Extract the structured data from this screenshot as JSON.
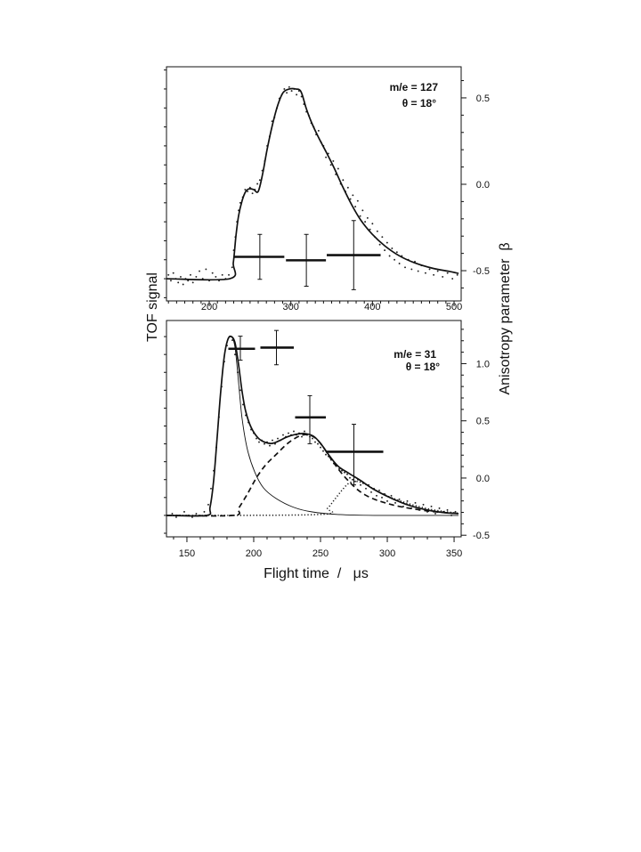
{
  "figure": {
    "y_left_label": "TOF signal",
    "y_right_label": "Anisotropy parameter  β",
    "x_label": "Flight time  /   μs"
  },
  "chart_data": [
    {
      "type": "line",
      "panel": "top",
      "annotation_mass": "m/e = 127",
      "annotation_angle": "θ = 18°",
      "xlim": [
        147.6,
        508.7
      ],
      "xticks": [
        200,
        300,
        400,
        500
      ],
      "xtick_labels": [
        "200",
        "300",
        "400",
        "500"
      ],
      "x_minor_step": 10,
      "ylim_signal": [
        -0.117,
        1.117
      ],
      "signal_minor_step": 0.1,
      "ylim_beta": [
        -0.675,
        0.68
      ],
      "beta_ticks": [
        -0.5,
        0.0,
        0.5
      ],
      "beta_tick_labels": [
        "-0.5",
        "0.0",
        "0.5"
      ],
      "beta_minor_step": 0.1,
      "series": [
        {
          "style": "solid-thick",
          "x": [
            147.6,
            225.1,
            229.5,
            232.7,
            236,
            240.4,
            244.7,
            249.1,
            254.5,
            260,
            265.5,
            270.9,
            277.5,
            284,
            290.5,
            298.2,
            305.8,
            312.4,
            318.9,
            325.5,
            334.2,
            342.9,
            352.7,
            363.6,
            374.5,
            385.5,
            399.6,
            414.9,
            432.4,
            450.9,
            472.9,
            494.7,
            505.6
          ],
          "y": [
            0,
            0,
            0.085,
            0.225,
            0.333,
            0.413,
            0.46,
            0.474,
            0.47,
            0.46,
            0.554,
            0.681,
            0.812,
            0.915,
            0.981,
            1.0,
            1.0,
            0.986,
            0.897,
            0.822,
            0.742,
            0.671,
            0.587,
            0.484,
            0.39,
            0.31,
            0.235,
            0.174,
            0.122,
            0.085,
            0.056,
            0.038,
            0.028
          ]
        }
      ],
      "points": [
        [
          150,
          0.02
        ],
        [
          153,
          -0.01
        ],
        [
          156,
          0.03
        ],
        [
          159,
          0.0
        ],
        [
          162,
          -0.02
        ],
        [
          165,
          0.01
        ],
        [
          168,
          -0.03
        ],
        [
          171,
          0.0
        ],
        [
          174,
          -0.01
        ],
        [
          177,
          0.02
        ],
        [
          180,
          -0.02
        ],
        [
          184,
          0.01
        ],
        [
          188,
          0.04
        ],
        [
          192,
          0.0
        ],
        [
          196,
          0.05
        ],
        [
          200,
          -0.01
        ],
        [
          204,
          0.03
        ],
        [
          208,
          0.01
        ],
        [
          212,
          -0.01
        ],
        [
          216,
          0.02
        ],
        [
          220,
          0.0
        ],
        [
          224,
          0.02
        ],
        [
          228,
          0.06
        ],
        [
          230,
          0.15
        ],
        [
          232,
          0.22
        ],
        [
          234,
          0.3
        ],
        [
          236,
          0.36
        ],
        [
          238,
          0.4
        ],
        [
          241,
          0.43
        ],
        [
          244,
          0.47
        ],
        [
          247,
          0.46
        ],
        [
          250,
          0.48
        ],
        [
          253,
          0.45
        ],
        [
          256,
          0.47
        ],
        [
          259,
          0.5
        ],
        [
          262,
          0.52
        ],
        [
          265,
          0.57
        ],
        [
          268,
          0.62
        ],
        [
          271,
          0.7
        ],
        [
          274,
          0.75
        ],
        [
          277,
          0.83
        ],
        [
          280,
          0.85
        ],
        [
          283,
          0.9
        ],
        [
          286,
          0.95
        ],
        [
          289,
          0.97
        ],
        [
          292,
          1.0
        ],
        [
          295,
          0.98
        ],
        [
          298,
          1.01
        ],
        [
          301,
          0.99
        ],
        [
          304,
          1.0
        ],
        [
          307,
          0.97
        ],
        [
          310,
          0.99
        ],
        [
          313,
          0.96
        ],
        [
          316,
          0.92
        ],
        [
          319,
          0.88
        ],
        [
          322,
          0.86
        ],
        [
          325,
          0.82
        ],
        [
          328,
          0.8
        ],
        [
          331,
          0.76
        ],
        [
          334,
          0.78
        ],
        [
          337,
          0.72
        ],
        [
          340,
          0.7
        ],
        [
          343,
          0.64
        ],
        [
          346,
          0.66
        ],
        [
          349,
          0.6
        ],
        [
          352,
          0.62
        ],
        [
          355,
          0.55
        ],
        [
          358,
          0.58
        ],
        [
          361,
          0.5
        ],
        [
          364,
          0.52
        ],
        [
          367,
          0.46
        ],
        [
          370,
          0.48
        ],
        [
          373,
          0.42
        ],
        [
          376,
          0.44
        ],
        [
          379,
          0.38
        ],
        [
          382,
          0.41
        ],
        [
          385,
          0.33
        ],
        [
          388,
          0.36
        ],
        [
          391,
          0.3
        ],
        [
          394,
          0.32
        ],
        [
          397,
          0.26
        ],
        [
          400,
          0.29
        ],
        [
          403,
          0.22
        ],
        [
          406,
          0.25
        ],
        [
          409,
          0.18
        ],
        [
          412,
          0.22
        ],
        [
          415,
          0.15
        ],
        [
          418,
          0.19
        ],
        [
          421,
          0.12
        ],
        [
          424,
          0.16
        ],
        [
          427,
          0.1
        ],
        [
          430,
          0.14
        ],
        [
          433,
          0.08
        ],
        [
          436,
          0.12
        ],
        [
          440,
          0.06
        ],
        [
          444,
          0.1
        ],
        [
          448,
          0.05
        ],
        [
          452,
          0.09
        ],
        [
          456,
          0.04
        ],
        [
          460,
          0.07
        ],
        [
          465,
          0.03
        ],
        [
          470,
          0.05
        ],
        [
          475,
          0.02
        ],
        [
          480,
          0.04
        ],
        [
          486,
          0.01
        ],
        [
          492,
          0.03
        ],
        [
          498,
          0.0
        ],
        [
          504,
          0.02
        ]
      ],
      "beta": [
        {
          "x": 262,
          "x_from": 230,
          "x_to": 292,
          "value": -0.42,
          "err_low": -0.55,
          "err_high": -0.29
        },
        {
          "x": 319,
          "x_from": 294,
          "x_to": 343,
          "value": -0.44,
          "err_low": -0.59,
          "err_high": -0.29
        },
        {
          "x": 377,
          "x_from": 344,
          "x_to": 410,
          "value": -0.41,
          "err_low": -0.61,
          "err_high": -0.21
        }
      ]
    },
    {
      "type": "line",
      "panel": "bottom",
      "annotation_mass": "m/e = 31",
      "annotation_angle": "θ = 18°",
      "xlim": [
        134.7,
        355.3
      ],
      "xticks": [
        150,
        200,
        250,
        300,
        350
      ],
      "xtick_labels": [
        "150",
        "200",
        "250",
        "300",
        "350"
      ],
      "x_minor_step": 10,
      "ylim_signal": [
        -0.12,
        1.09
      ],
      "signal_minor_step": 0.1,
      "ylim_beta": [
        -0.514,
        1.377
      ],
      "beta_ticks": [
        -0.5,
        0.0,
        0.5,
        1.0
      ],
      "beta_tick_labels": [
        "-0.5",
        "0.0",
        "0.5",
        "1.0"
      ],
      "beta_minor_step": 0.1,
      "series": [
        {
          "style": "dotted",
          "x": [
            134.7,
            248.7,
            255.3,
            260.7,
            266,
            271.3,
            276.7,
            283.3,
            296.7,
            310,
            323.3,
            336.7,
            353.3
          ],
          "y": [
            0,
            0.005,
            0.04,
            0.09,
            0.14,
            0.18,
            0.19,
            0.175,
            0.12,
            0.08,
            0.05,
            0.028,
            0.012
          ]
        },
        {
          "style": "dashed",
          "x": [
            134.7,
            184.7,
            188.7,
            195.3,
            202,
            208.7,
            216.7,
            226.7,
            236.7,
            244.7,
            251.3,
            259.3,
            270,
            283.3,
            303.3,
            330,
            353.3
          ],
          "y": [
            0,
            0,
            0.04,
            0.12,
            0.21,
            0.28,
            0.34,
            0.41,
            0.45,
            0.44,
            0.39,
            0.3,
            0.2,
            0.115,
            0.06,
            0.025,
            0.01
          ]
        },
        {
          "style": "solid-thin",
          "x": [
            134.7,
            164.7,
            167.3,
            170,
            172.7,
            175.3,
            178,
            180.7,
            183.3,
            186,
            188.7,
            191.3,
            195.3,
            200.7,
            207.3,
            216.7,
            230,
            243.3,
            263.3,
            290,
            353.3
          ],
          "y": [
            0,
            0,
            0.045,
            0.194,
            0.443,
            0.692,
            0.891,
            0.985,
            1.0,
            0.94,
            0.741,
            0.542,
            0.368,
            0.244,
            0.154,
            0.095,
            0.045,
            0.02,
            0.005,
            0,
            0
          ]
        },
        {
          "style": "solid-thick",
          "x": [
            134.7,
            164.7,
            167.3,
            170,
            172.7,
            175.3,
            178,
            180.7,
            183.3,
            186,
            188.7,
            191.3,
            194,
            198,
            203.3,
            208.7,
            214,
            219.3,
            224.7,
            231.3,
            238,
            244.7,
            250,
            256.7,
            263.3,
            271.3,
            280,
            290,
            303.3,
            316.7,
            330,
            343.3,
            353.3
          ],
          "y": [
            0,
            0,
            0.045,
            0.194,
            0.443,
            0.692,
            0.891,
            0.985,
            1.0,
            0.965,
            0.841,
            0.692,
            0.582,
            0.493,
            0.433,
            0.408,
            0.403,
            0.418,
            0.438,
            0.453,
            0.458,
            0.443,
            0.403,
            0.333,
            0.274,
            0.235,
            0.195,
            0.145,
            0.095,
            0.055,
            0.03,
            0.015,
            0.01
          ]
        }
      ],
      "points": [
        [
          136,
          0.0
        ],
        [
          139,
          0.01
        ],
        [
          142,
          -0.01
        ],
        [
          145,
          0.0
        ],
        [
          148,
          0.02
        ],
        [
          151,
          0.0
        ],
        [
          154,
          -0.01
        ],
        [
          157,
          0.01
        ],
        [
          160,
          0.0
        ],
        [
          163,
          0.02
        ],
        [
          166,
          0.06
        ],
        [
          168,
          0.15
        ],
        [
          170,
          0.25
        ],
        [
          172,
          0.38
        ],
        [
          174,
          0.55
        ],
        [
          176,
          0.72
        ],
        [
          178,
          0.86
        ],
        [
          180,
          0.95
        ],
        [
          182,
          1.0
        ],
        [
          184,
          0.98
        ],
        [
          186,
          0.9
        ],
        [
          188,
          0.8
        ],
        [
          190,
          0.7
        ],
        [
          192,
          0.62
        ],
        [
          194,
          0.56
        ],
        [
          196,
          0.52
        ],
        [
          198,
          0.48
        ],
        [
          200,
          0.46
        ],
        [
          202,
          0.43
        ],
        [
          204,
          0.41
        ],
        [
          206,
          0.42
        ],
        [
          208,
          0.4
        ],
        [
          210,
          0.41
        ],
        [
          212,
          0.39
        ],
        [
          214,
          0.42
        ],
        [
          216,
          0.4
        ],
        [
          218,
          0.43
        ],
        [
          220,
          0.42
        ],
        [
          222,
          0.45
        ],
        [
          224,
          0.44
        ],
        [
          226,
          0.46
        ],
        [
          228,
          0.45
        ],
        [
          230,
          0.47
        ],
        [
          232,
          0.45
        ],
        [
          234,
          0.46
        ],
        [
          236,
          0.44
        ],
        [
          238,
          0.47
        ],
        [
          240,
          0.45
        ],
        [
          242,
          0.44
        ],
        [
          244,
          0.43
        ],
        [
          246,
          0.41
        ],
        [
          248,
          0.4
        ],
        [
          250,
          0.38
        ],
        [
          252,
          0.36
        ],
        [
          254,
          0.34
        ],
        [
          256,
          0.33
        ],
        [
          258,
          0.31
        ],
        [
          260,
          0.29
        ],
        [
          262,
          0.28
        ],
        [
          264,
          0.26
        ],
        [
          266,
          0.25
        ],
        [
          268,
          0.24
        ],
        [
          270,
          0.23
        ],
        [
          272,
          0.21
        ],
        [
          274,
          0.2
        ],
        [
          276,
          0.19
        ],
        [
          278,
          0.2
        ],
        [
          280,
          0.17
        ],
        [
          282,
          0.18
        ],
        [
          284,
          0.15
        ],
        [
          286,
          0.17
        ],
        [
          288,
          0.13
        ],
        [
          290,
          0.15
        ],
        [
          292,
          0.11
        ],
        [
          294,
          0.14
        ],
        [
          296,
          0.1
        ],
        [
          298,
          0.12
        ],
        [
          300,
          0.08
        ],
        [
          303,
          0.11
        ],
        [
          306,
          0.07
        ],
        [
          309,
          0.09
        ],
        [
          312,
          0.05
        ],
        [
          315,
          0.08
        ],
        [
          318,
          0.04
        ],
        [
          321,
          0.07
        ],
        [
          324,
          0.03
        ],
        [
          327,
          0.06
        ],
        [
          330,
          0.02
        ],
        [
          333,
          0.05
        ],
        [
          336,
          0.01
        ],
        [
          339,
          0.04
        ],
        [
          342,
          0.02
        ],
        [
          345,
          0.03
        ],
        [
          348,
          0.0
        ],
        [
          351,
          0.02
        ]
      ],
      "beta": [
        {
          "x": 190,
          "x_from": 181,
          "x_to": 201,
          "value": 1.13,
          "err_low": 1.03,
          "err_high": 1.24
        },
        {
          "x": 217,
          "x_from": 205,
          "x_to": 230,
          "value": 1.14,
          "err_low": 0.99,
          "err_high": 1.29
        },
        {
          "x": 242,
          "x_from": 231,
          "x_to": 254,
          "value": 0.53,
          "err_low": 0.3,
          "err_high": 0.72
        },
        {
          "x": 275,
          "x_from": 254,
          "x_to": 297,
          "value": 0.23,
          "err_low": -0.06,
          "err_high": 0.47
        }
      ]
    }
  ]
}
